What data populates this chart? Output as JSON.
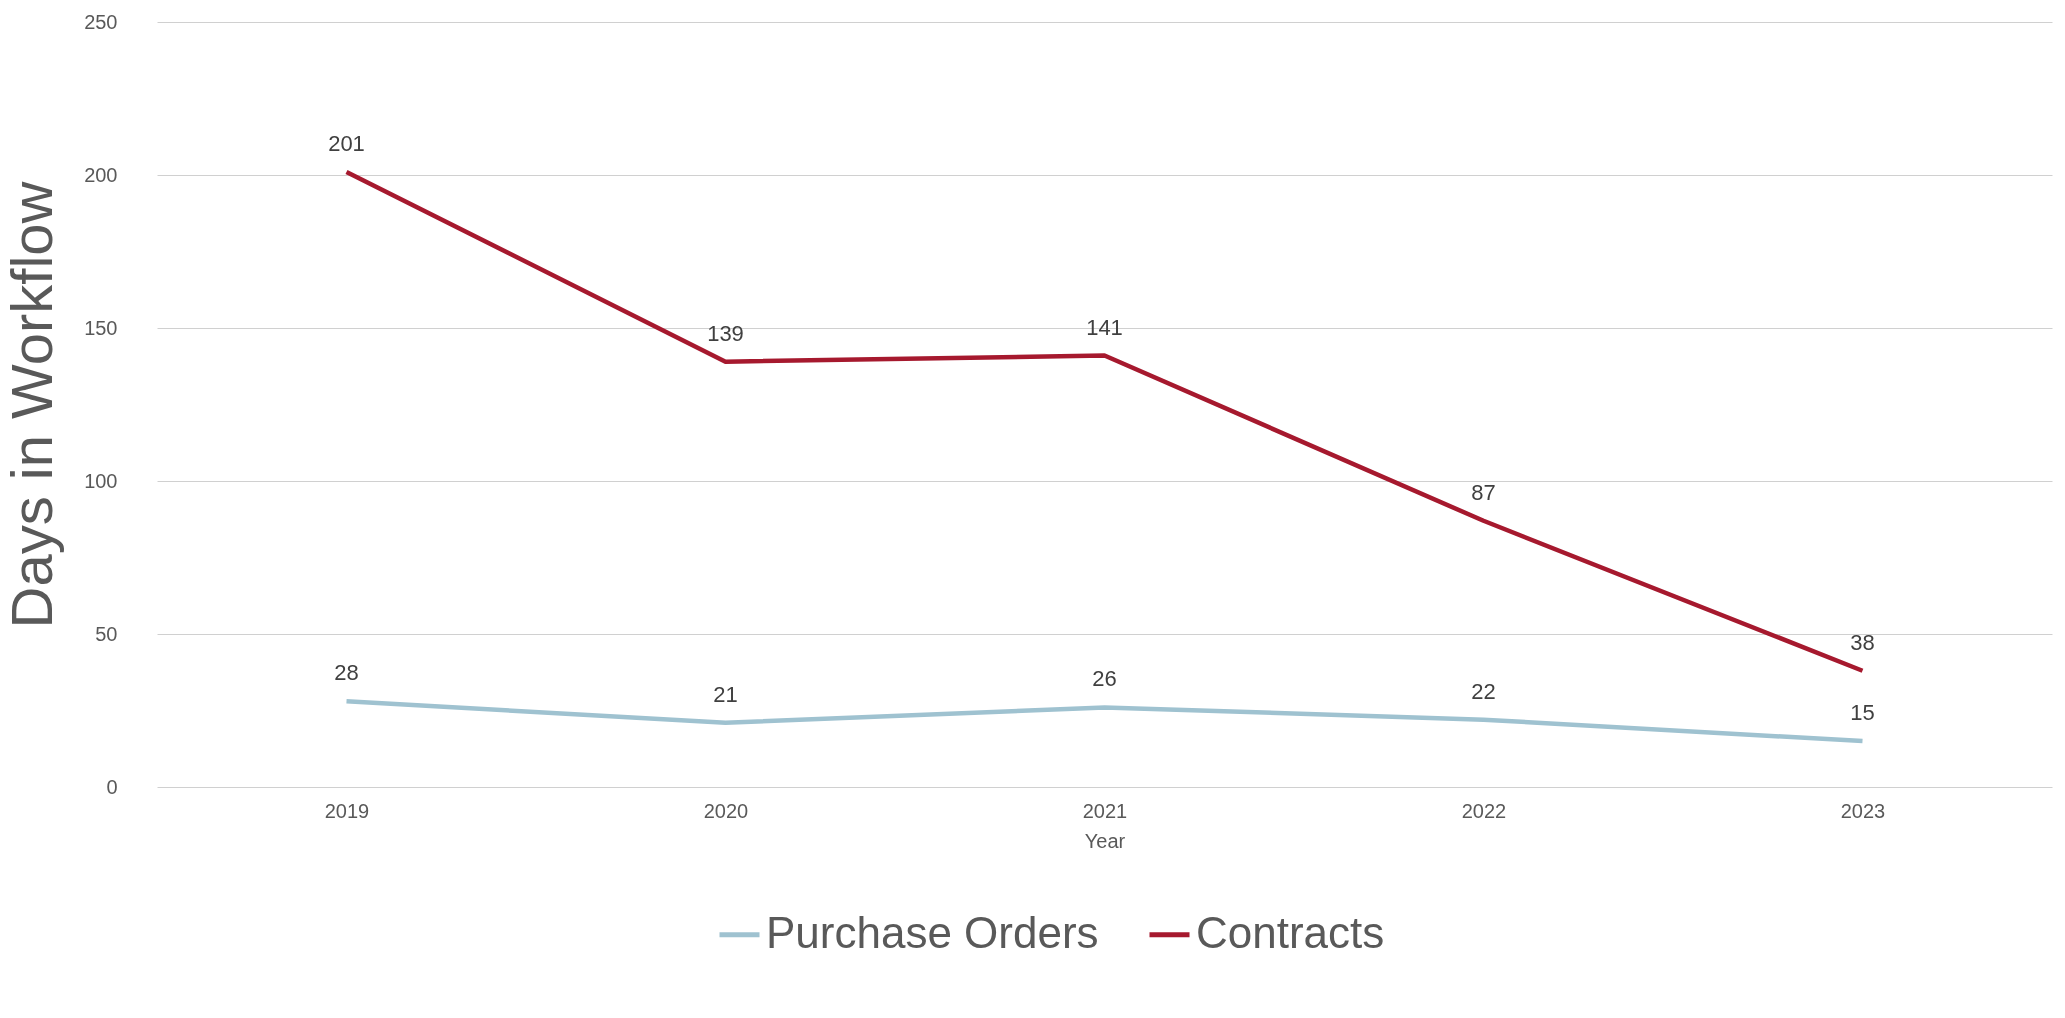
{
  "chart_data": {
    "type": "line",
    "xlabel": "Year",
    "ylabel": "Days in Workflow",
    "categories": [
      "2019",
      "2020",
      "2021",
      "2022",
      "2023"
    ],
    "series": [
      {
        "name": "Purchase Orders",
        "color": "#9fc2d0",
        "values": [
          28,
          21,
          26,
          22,
          15
        ]
      },
      {
        "name": "Contracts",
        "color": "#a6192e",
        "values": [
          201,
          139,
          141,
          87,
          38
        ]
      }
    ],
    "ylim": [
      0,
      250
    ],
    "yticks": [
      0,
      50,
      100,
      150,
      200,
      250
    ],
    "grid": "y",
    "legend": "bottom",
    "data_labels": true,
    "marker": "none",
    "line_style": "solid"
  }
}
